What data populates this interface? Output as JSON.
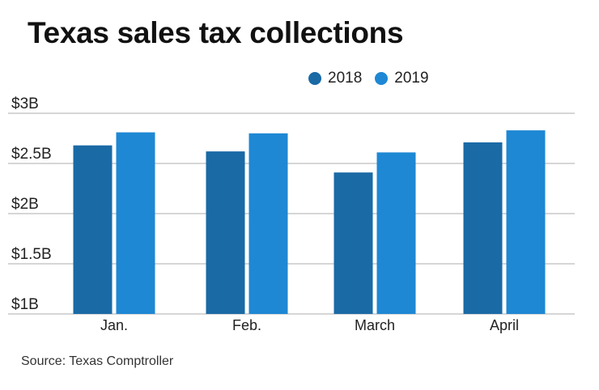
{
  "title": "Texas sales tax collections",
  "source": "Source: Texas Comptroller",
  "colors": {
    "series_2018": "#1a6aa6",
    "series_2019": "#1e88d4",
    "grid": "#bdbdbd"
  },
  "chart_data": {
    "type": "bar",
    "title": "Texas sales tax collections",
    "xlabel": "",
    "ylabel": "",
    "categories": [
      "Jan.",
      "Feb.",
      "March",
      "April"
    ],
    "series": [
      {
        "name": "2018",
        "values": [
          2.68,
          2.62,
          2.41,
          2.71
        ]
      },
      {
        "name": "2019",
        "values": [
          2.81,
          2.8,
          2.61,
          2.83
        ]
      }
    ],
    "ylim": [
      1,
      3
    ],
    "yticks": [
      {
        "value": 3,
        "label": "$3B"
      },
      {
        "value": 2.5,
        "label": "$2.5B"
      },
      {
        "value": 2,
        "label": "$2B"
      },
      {
        "value": 1.5,
        "label": "$1.5B"
      },
      {
        "value": 1,
        "label": "$1B"
      }
    ],
    "grid": true,
    "legend_position": "top-right",
    "source": "Source: Texas Comptroller"
  }
}
